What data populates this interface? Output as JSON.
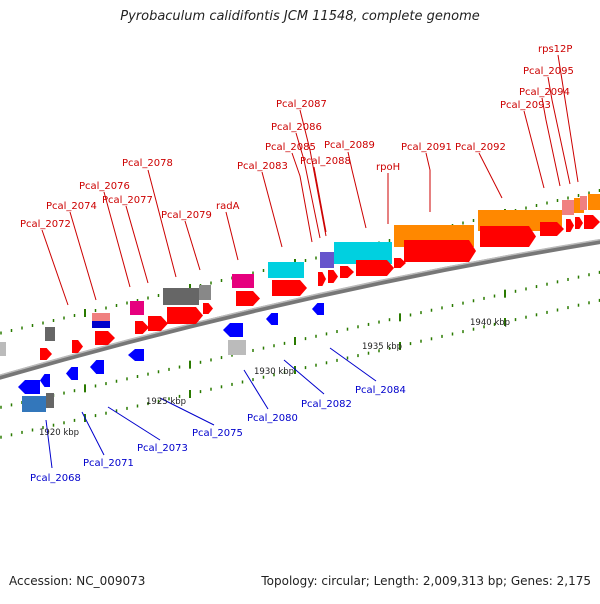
{
  "title": "Pyrobaculum calidifontis JCM 11548, complete genome",
  "footer": {
    "accession": "Accession: NC_009073",
    "summary": "Topology: circular; Length: 2,009,313 bp; Genes: 2,175"
  },
  "colors": {
    "forward_gene": "#ff0000",
    "reverse_gene": "#0000ff",
    "forward_label": "#cc0000",
    "reverse_label": "#0000cc",
    "backbone": "#888888",
    "tick": "#2a7a00"
  },
  "scale_labels": [
    "1920 kbp",
    "1925 kbp",
    "1930 kbp",
    "1935 kbp",
    "1940 kbp"
  ],
  "forward_labels": [
    "Pcal_2072",
    "Pcal_2074",
    "Pcal_2076",
    "Pcal_2077",
    "Pcal_2078",
    "Pcal_2079",
    "radA",
    "Pcal_2083",
    "Pcal_2085",
    "Pcal_2086",
    "Pcal_2087",
    "Pcal_2088",
    "Pcal_2089",
    "rpoH",
    "Pcal_2091",
    "Pcal_2092",
    "Pcal_2093",
    "Pcal_2094",
    "Pcal_2095",
    "rps12P"
  ],
  "reverse_labels": [
    "Pcal_2068",
    "Pcal_2071",
    "Pcal_2073",
    "Pcal_2075",
    "Pcal_2080",
    "Pcal_2082",
    "Pcal_2084"
  ]
}
